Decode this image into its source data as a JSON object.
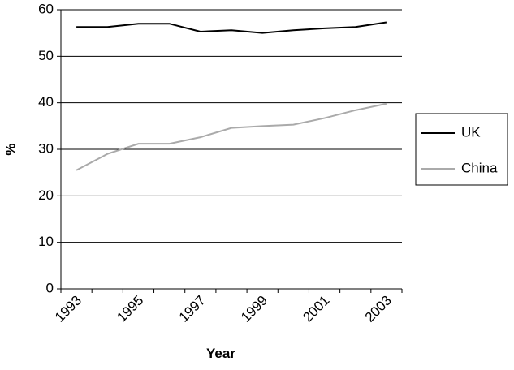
{
  "chart_data": {
    "type": "line",
    "x_label": "Year",
    "y_label": "%",
    "categories": [
      "1993",
      null,
      "1995",
      null,
      "1997",
      null,
      "1999",
      null,
      "2001",
      null,
      "2003"
    ],
    "series": [
      {
        "name": "UK",
        "color": "#000000",
        "values": [
          56.3,
          56.3,
          57,
          57,
          55.3,
          55.6,
          55,
          55.6,
          56,
          56.3,
          57.3
        ]
      },
      {
        "name": "China",
        "color": "#aaaaaa",
        "values": [
          25.5,
          29,
          31.2,
          31.2,
          32.6,
          34.6,
          35,
          35.3,
          36.7,
          38.4,
          39.8
        ]
      }
    ],
    "ylim": [
      0,
      60
    ],
    "yticks": [
      0,
      10,
      20,
      30,
      40,
      50,
      60
    ],
    "grid": true,
    "legend": "right"
  }
}
